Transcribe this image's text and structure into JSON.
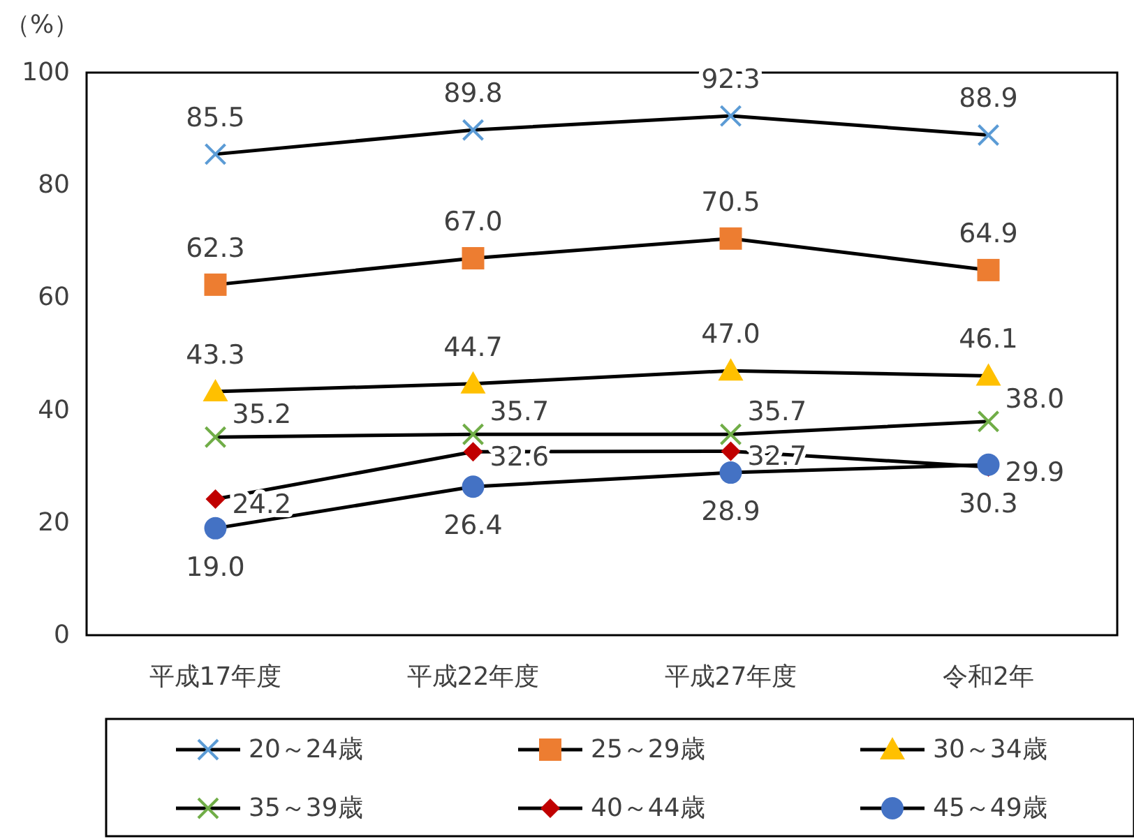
{
  "chart_data": {
    "type": "line",
    "ylabel": "（%）",
    "categories": [
      "平成17年度",
      "平成22年度",
      "平成27年度",
      "令和2年"
    ],
    "ylim": [
      0,
      100
    ],
    "yticks": [
      0,
      20,
      40,
      60,
      80,
      100
    ],
    "grid": false,
    "legend": "bottom",
    "series": [
      {
        "name": "20～24歳",
        "color": "#5b9bd5",
        "marker": "cross",
        "values": [
          85.5,
          89.8,
          92.3,
          88.9
        ],
        "value_labels": [
          "85.5",
          "89.8",
          "92.3",
          "88.9"
        ]
      },
      {
        "name": "25～29歳",
        "color": "#ed7d31",
        "marker": "square",
        "values": [
          62.3,
          67.0,
          70.5,
          64.9
        ],
        "value_labels": [
          "62.3",
          "67.0",
          "70.5",
          "64.9"
        ]
      },
      {
        "name": "30～34歳",
        "color": "#ffc000",
        "marker": "triangle",
        "values": [
          43.3,
          44.7,
          47.0,
          46.1
        ],
        "value_labels": [
          "43.3",
          "44.7",
          "47.0",
          "46.1"
        ]
      },
      {
        "name": "35～39歳",
        "color": "#70ad47",
        "marker": "cross",
        "values": [
          35.2,
          35.7,
          35.7,
          38.0
        ],
        "value_labels": [
          "35.2",
          "35.7",
          "35.7",
          "38.0"
        ]
      },
      {
        "name": "40～44歳",
        "color": "#c00000",
        "marker": "diamond",
        "values": [
          24.2,
          32.6,
          32.7,
          29.9
        ],
        "value_labels": [
          "24.2",
          "32.6",
          "32.7",
          "29.9"
        ]
      },
      {
        "name": "45～49歳",
        "color": "#4472c4",
        "marker": "circle",
        "values": [
          19.0,
          26.4,
          28.9,
          30.3
        ],
        "value_labels": [
          "19.0",
          "26.4",
          "28.9",
          "30.3"
        ]
      }
    ]
  }
}
